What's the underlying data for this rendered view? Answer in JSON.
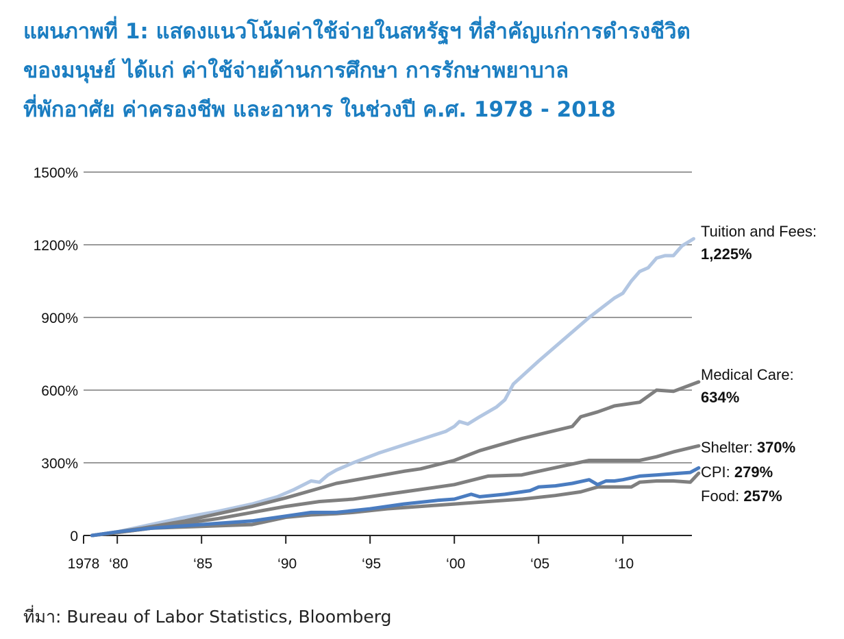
{
  "title_lines": [
    "แผนภาพที่ 1: แสดงแนวโน้มค่าใช้จ่ายในสหรัฐฯ ที่สำคัญแก่การดำรงชีวิต",
    "ของมนุษย์ ได้แก่ ค่าใช้จ่ายด้านการศึกษา การรักษาพยาบาล",
    "ที่พักอาศัย ค่าครองชีพ และอาหาร ในช่วงปี ค.ศ. 1978 - 2018"
  ],
  "source": "ที่มา: Bureau of Labor Statistics, Bloomberg",
  "chart_data": {
    "type": "line",
    "x_range": [
      1978,
      2014.5
    ],
    "ylim": [
      0,
      1500
    ],
    "grid": true,
    "y_ticks": [
      {
        "value": 0,
        "label": "0"
      },
      {
        "value": 300,
        "label": "300%"
      },
      {
        "value": 600,
        "label": "600%"
      },
      {
        "value": 900,
        "label": "900%"
      },
      {
        "value": 1200,
        "label": "1200%"
      },
      {
        "value": 1500,
        "label": "1500%"
      }
    ],
    "x_ticks": [
      {
        "value": 1978,
        "label": "1978"
      },
      {
        "value": 1980,
        "label": "‘80"
      },
      {
        "value": 1985,
        "label": "‘85"
      },
      {
        "value": 1990,
        "label": "‘90"
      },
      {
        "value": 1995,
        "label": "‘95"
      },
      {
        "value": 2000,
        "label": "‘00"
      },
      {
        "value": 2005,
        "label": "‘05"
      },
      {
        "value": 2010,
        "label": "‘10"
      }
    ],
    "series": [
      {
        "name": "Tuition and Fees",
        "end_label": "1,225%",
        "color": "#b2c6e2",
        "x": [
          1978.5,
          1980,
          1982,
          1984,
          1986,
          1988,
          1989.5,
          1990.5,
          1991.5,
          1992,
          1992.5,
          1993,
          1994,
          1995.5,
          1997.5,
          1999.5,
          2000,
          2000.3,
          2000.8,
          2001.5,
          2002.5,
          2003,
          2003.5,
          2005,
          2006.5,
          2008,
          2009.5,
          2010,
          2010.5,
          2011,
          2011.5,
          2012,
          2012.5,
          2013,
          2013.5,
          2014.2
        ],
        "y": [
          0,
          15,
          45,
          75,
          100,
          130,
          160,
          190,
          225,
          220,
          250,
          270,
          300,
          340,
          385,
          430,
          450,
          470,
          460,
          490,
          530,
          560,
          625,
          720,
          810,
          900,
          980,
          1000,
          1050,
          1090,
          1105,
          1145,
          1155,
          1155,
          1195,
          1225
        ]
      },
      {
        "name": "Medical Care",
        "end_label": "634%",
        "color": "#7f7f7f",
        "x": [
          1978.5,
          1980,
          1981.5,
          1984,
          1986,
          1988,
          1990,
          1992,
          1993,
          1995,
          1997,
          1998,
          2000,
          2001.5,
          2003,
          2004,
          2005.5,
          2007,
          2007.5,
          2008.5,
          2009.5,
          2011,
          2012,
          2013,
          2014.5
        ],
        "y": [
          0,
          15,
          30,
          60,
          90,
          120,
          155,
          195,
          215,
          240,
          265,
          275,
          310,
          350,
          380,
          400,
          425,
          450,
          490,
          510,
          535,
          550,
          600,
          595,
          634
        ]
      },
      {
        "name": "Shelter",
        "end_label": "370%",
        "color": "#7f7f7f",
        "x": [
          1978.5,
          1980,
          1982,
          1984,
          1986,
          1988,
          1990,
          1992,
          1994,
          1996,
          1998,
          2000,
          2002,
          2004,
          2006,
          2008,
          2010,
          2011,
          2012,
          2013,
          2014.5
        ],
        "y": [
          0,
          12,
          30,
          50,
          70,
          95,
          120,
          140,
          150,
          170,
          190,
          210,
          245,
          250,
          280,
          310,
          310,
          310,
          325,
          345,
          370
        ]
      },
      {
        "name": "CPI",
        "end_label": "279%",
        "color": "#4a7cc0",
        "x": [
          1978.5,
          1980,
          1982,
          1984,
          1986,
          1988,
          1990,
          1991.5,
          1993,
          1995,
          1997,
          1999,
          2000,
          2001,
          2001.5,
          2003,
          2004.5,
          2005,
          2006,
          2007,
          2008,
          2008.5,
          2009,
          2009.5,
          2010,
          2011,
          2012,
          2013,
          2014,
          2014.5
        ],
        "y": [
          0,
          15,
          30,
          40,
          50,
          60,
          80,
          95,
          95,
          110,
          130,
          145,
          150,
          170,
          160,
          170,
          185,
          200,
          205,
          215,
          230,
          210,
          225,
          225,
          230,
          245,
          250,
          255,
          260,
          279
        ]
      },
      {
        "name": "Food",
        "end_label": "257%",
        "color": "#7f7f7f",
        "x": [
          1978.5,
          1980,
          1982,
          1984,
          1986,
          1988,
          1990,
          1991.5,
          1993,
          1994,
          1996,
          1998,
          2000,
          2002,
          2004,
          2006,
          2007.5,
          2008.5,
          2009,
          2010.5,
          2011,
          2012,
          2013,
          2014,
          2014.5
        ],
        "y": [
          0,
          12,
          30,
          35,
          40,
          45,
          75,
          85,
          90,
          95,
          110,
          120,
          130,
          140,
          150,
          165,
          180,
          200,
          200,
          200,
          220,
          225,
          225,
          220,
          257
        ]
      }
    ]
  }
}
